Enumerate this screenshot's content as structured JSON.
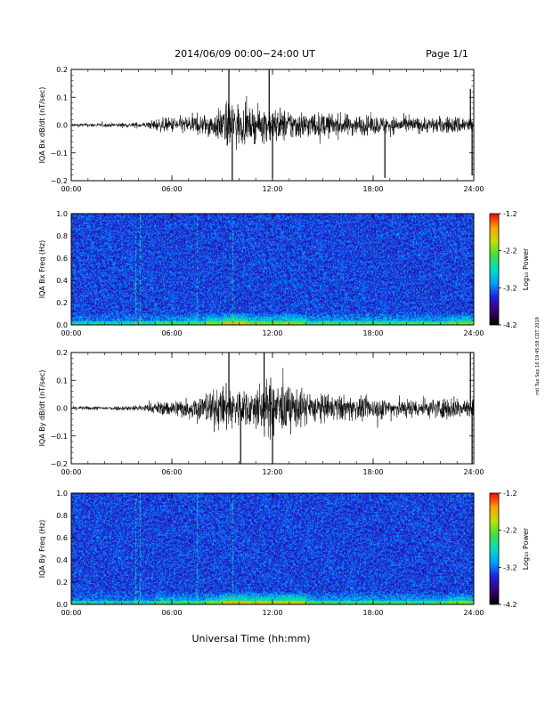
{
  "header": {
    "title": "2014/06/09  00:00−24:00 UT",
    "page": "Page 1/1"
  },
  "footer": {
    "xlabel": "Universal Time (hh:mm)",
    "side_stamp": "mtl Tue Sep 16 19:45:58 CDT 2019"
  },
  "time_ticks": [
    "00:00",
    "06:00",
    "12:00",
    "18:00",
    "24:00"
  ],
  "colorbar": {
    "label": "Log₁₀ Power",
    "ticks": [
      "-1.2",
      "-2.2",
      "-3.2",
      "-4.2"
    ],
    "range": [
      -4.2,
      -1.2
    ],
    "colors": [
      "#000000",
      "#3a0070",
      "#2020e0",
      "#00a0ff",
      "#00e0c0",
      "#40e040",
      "#c0e000",
      "#ffa000",
      "#ff0000"
    ]
  },
  "chart_data": [
    {
      "type": "line",
      "ylabel": "IQA Bx dB/dt (nT/sec)",
      "yticks": [
        "0.2",
        "0.1",
        "0.0",
        "−0.1",
        "−0.2"
      ],
      "ylim": [
        -0.2,
        0.2
      ],
      "xlim": [
        0,
        24
      ],
      "x_unit": "hours UT",
      "envelope": [
        {
          "x": 0,
          "amp": 0.012
        },
        {
          "x": 3,
          "amp": 0.015
        },
        {
          "x": 4.5,
          "amp": 0.02
        },
        {
          "x": 5,
          "amp": 0.04
        },
        {
          "x": 7,
          "amp": 0.06
        },
        {
          "x": 8.5,
          "amp": 0.08
        },
        {
          "x": 9.6,
          "amp": 0.17
        },
        {
          "x": 10.5,
          "amp": 0.1
        },
        {
          "x": 12,
          "amp": 0.12
        },
        {
          "x": 13,
          "amp": 0.1
        },
        {
          "x": 15,
          "amp": 0.08
        },
        {
          "x": 18,
          "amp": 0.06
        },
        {
          "x": 21,
          "amp": 0.05
        },
        {
          "x": 23.5,
          "amp": 0.06
        },
        {
          "x": 24,
          "amp": 0.05
        }
      ],
      "spikes": [
        {
          "x": 9.4,
          "y": 0.2
        },
        {
          "x": 9.6,
          "y": -0.2
        },
        {
          "x": 11.8,
          "y": 0.2
        },
        {
          "x": 12.0,
          "y": -0.19
        },
        {
          "x": 18.7,
          "y": -0.19
        },
        {
          "x": 23.8,
          "y": 0.13
        },
        {
          "x": 23.9,
          "y": -0.18
        }
      ]
    },
    {
      "type": "heatmap",
      "ylabel": "IQA Bx Freq (Hz)",
      "yticks": [
        "1.0",
        "0.8",
        "0.6",
        "0.4",
        "0.2",
        "0.0"
      ],
      "ylim": [
        0,
        1.0
      ],
      "xlim": [
        0,
        24
      ],
      "colorbar": "Log₁₀ Power",
      "vertical_lines_hours": [
        3.8,
        4.1,
        7.5,
        9.6
      ]
    },
    {
      "type": "line",
      "ylabel": "IQA By dB/dt (nT/sec)",
      "yticks": [
        "0.2",
        "0.1",
        "0.0",
        "−0.1",
        "−0.2"
      ],
      "ylim": [
        -0.2,
        0.2
      ],
      "xlim": [
        0,
        24
      ],
      "x_unit": "hours UT",
      "envelope": [
        {
          "x": 0,
          "amp": 0.012
        },
        {
          "x": 3,
          "amp": 0.015
        },
        {
          "x": 4.5,
          "amp": 0.025
        },
        {
          "x": 5,
          "amp": 0.04
        },
        {
          "x": 7,
          "amp": 0.07
        },
        {
          "x": 9.3,
          "amp": 0.15
        },
        {
          "x": 10.5,
          "amp": 0.12
        },
        {
          "x": 12,
          "amp": 0.2
        },
        {
          "x": 13,
          "amp": 0.14
        },
        {
          "x": 15,
          "amp": 0.09
        },
        {
          "x": 18,
          "amp": 0.07
        },
        {
          "x": 21,
          "amp": 0.06
        },
        {
          "x": 23.5,
          "amp": 0.08
        },
        {
          "x": 24,
          "amp": 0.06
        }
      ],
      "spikes": [
        {
          "x": 9.4,
          "y": 0.2
        },
        {
          "x": 10.1,
          "y": -0.2
        },
        {
          "x": 11.5,
          "y": 0.2
        },
        {
          "x": 12.0,
          "y": -0.2
        },
        {
          "x": 23.8,
          "y": 0.2
        },
        {
          "x": 23.9,
          "y": -0.2
        }
      ]
    },
    {
      "type": "heatmap",
      "ylabel": "IQA By Freq (Hz)",
      "yticks": [
        "1.0",
        "0.8",
        "0.6",
        "0.4",
        "0.2",
        "0.0"
      ],
      "ylim": [
        0,
        1.0
      ],
      "xlim": [
        0,
        24
      ],
      "colorbar": "Log₁₀ Power",
      "vertical_lines_hours": [
        3.8,
        4.1,
        7.5,
        9.6
      ]
    }
  ]
}
